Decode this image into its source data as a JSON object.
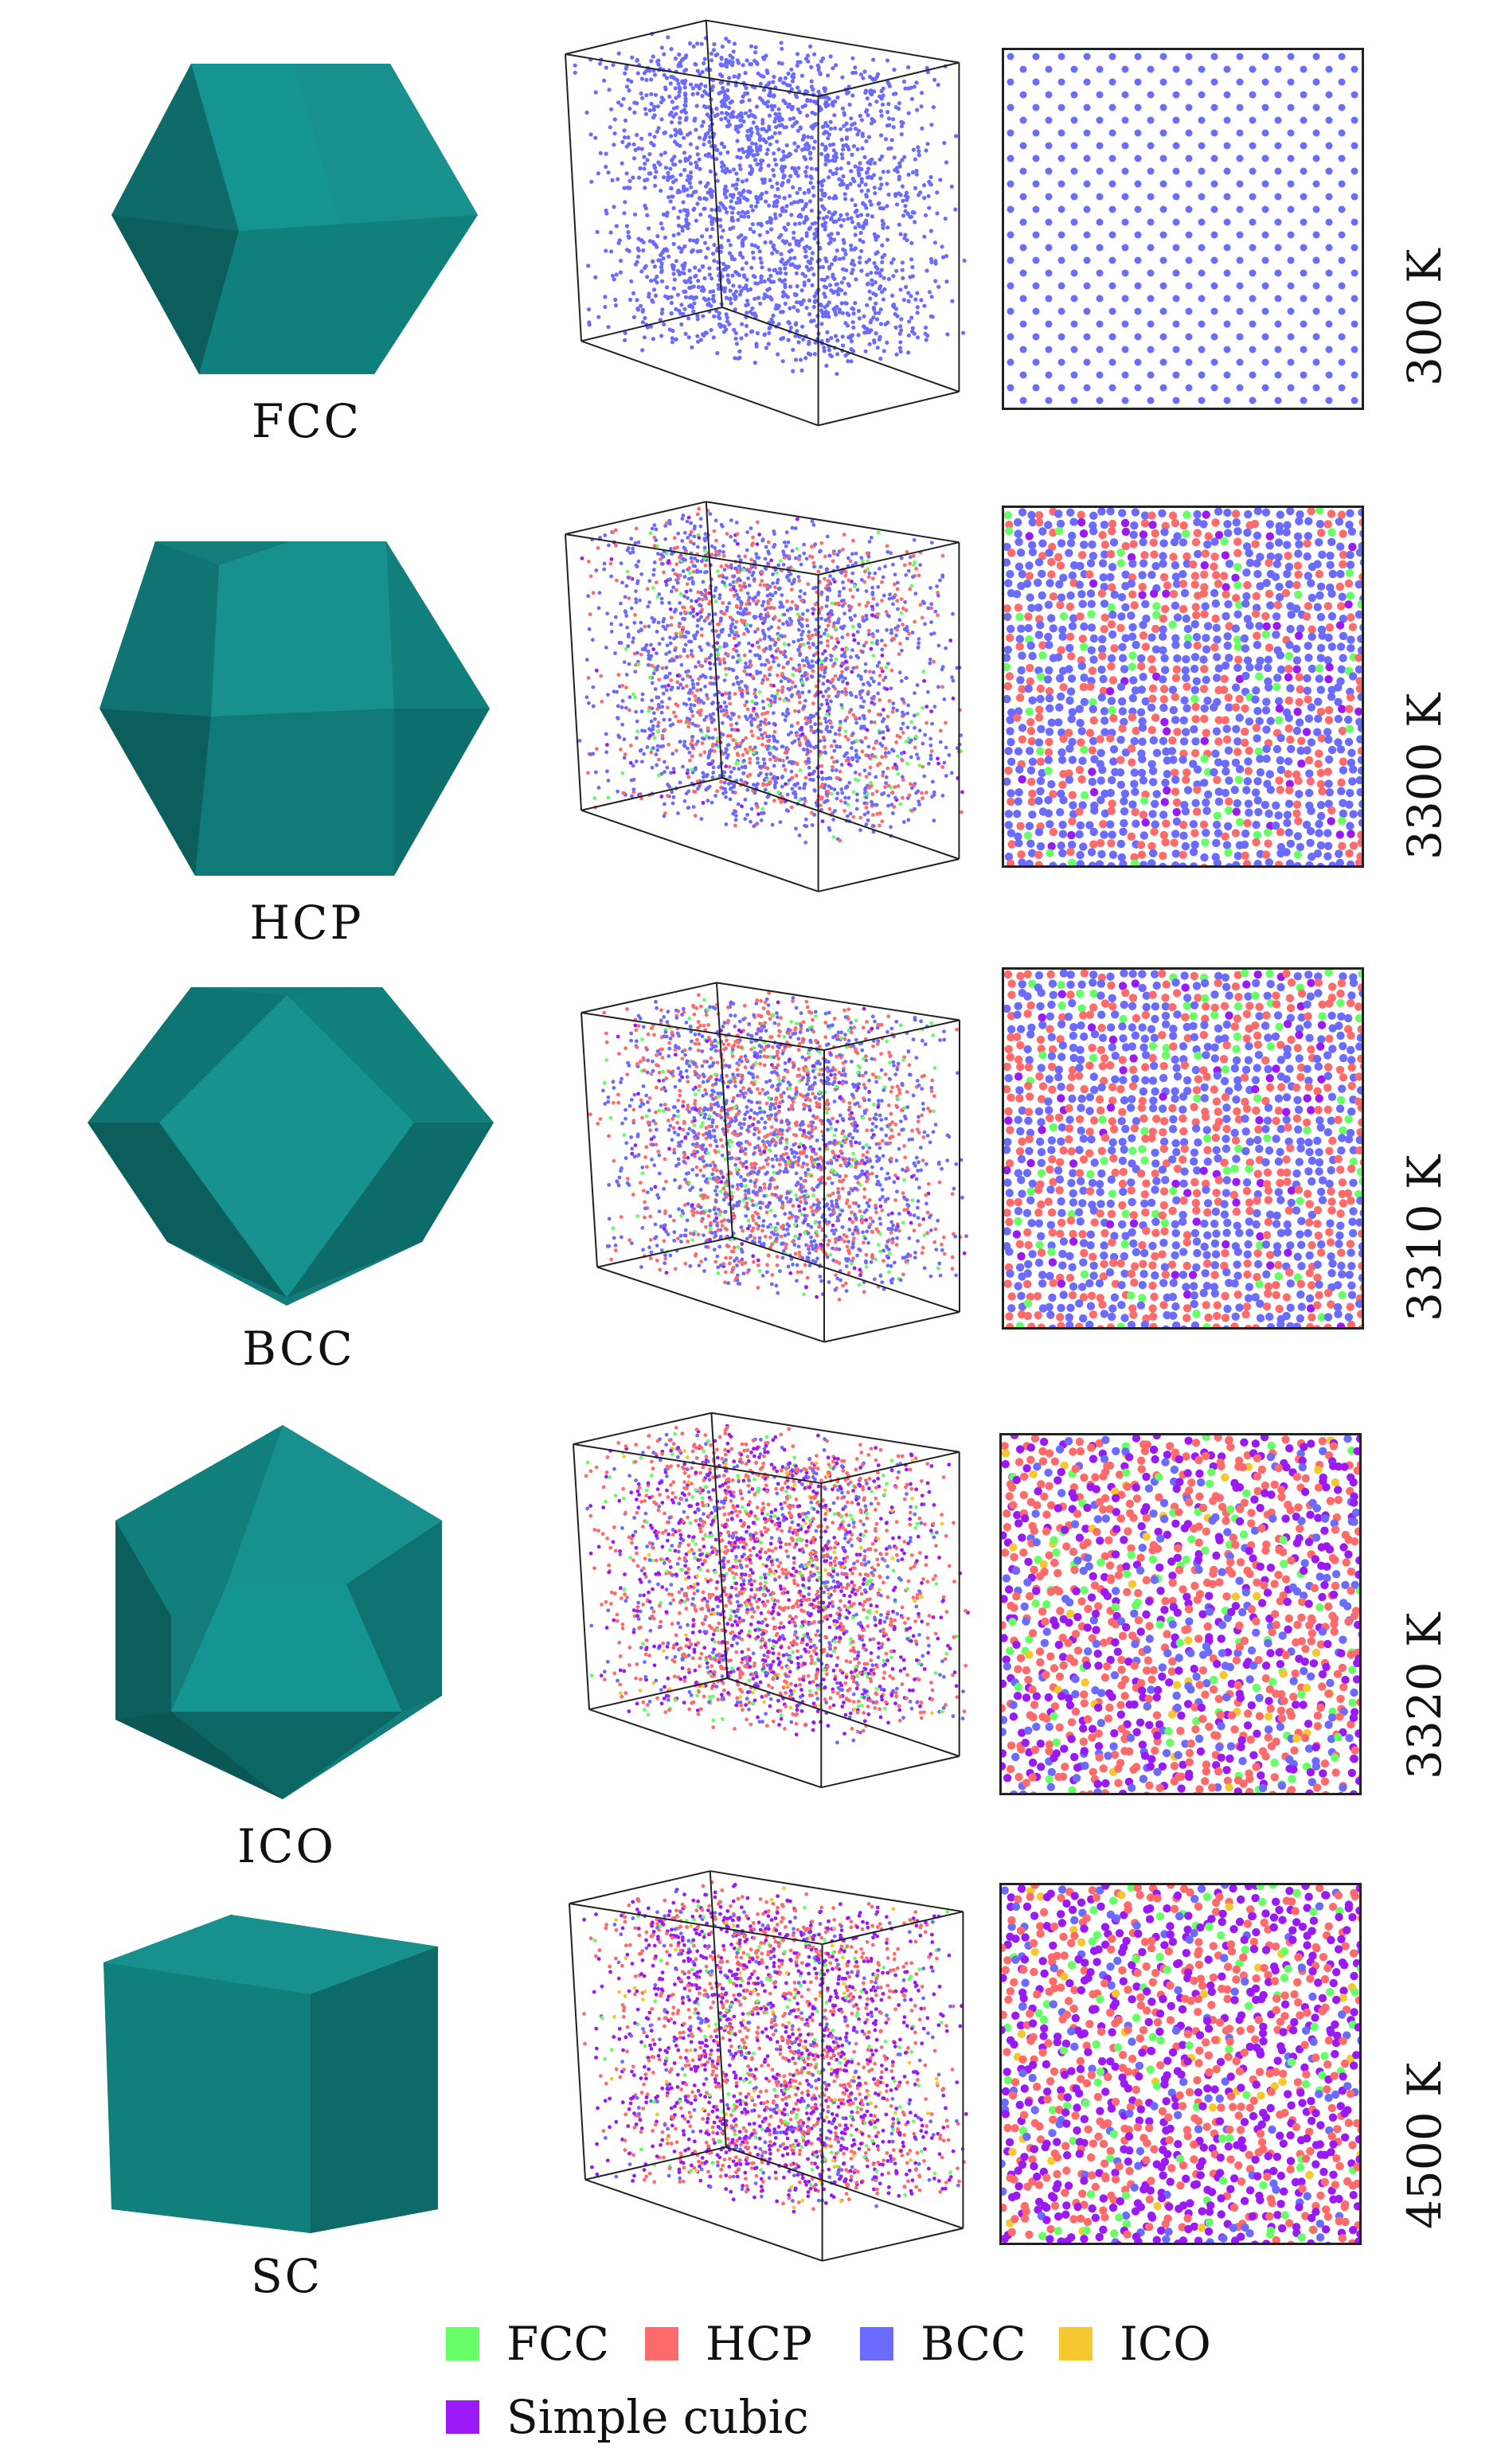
{
  "rows": [
    {
      "structure": "FCC",
      "temperature": "300 K"
    },
    {
      "structure": "HCP",
      "temperature": "3300 K"
    },
    {
      "structure": "BCC",
      "temperature": "3310 K"
    },
    {
      "structure": "ICO",
      "temperature": "3320 K"
    },
    {
      "structure": "SC",
      "temperature": "4500 K"
    }
  ],
  "legend": [
    {
      "label": "FCC",
      "color": "#66ff66"
    },
    {
      "label": "HCP",
      "color": "#ff6b6b"
    },
    {
      "label": "BCC",
      "color": "#6b6bff"
    },
    {
      "label": "ICO",
      "color": "#f5c830"
    },
    {
      "label": "Simple cubic",
      "color": "#9b19f5"
    }
  ],
  "polyhedron_color": "#127d7b",
  "atom_mix": [
    {
      "BCC": 1.0
    },
    {
      "BCC": 0.62,
      "HCP": 0.28,
      "FCC": 0.06,
      "Simple cubic": 0.04
    },
    {
      "BCC": 0.52,
      "HCP": 0.36,
      "FCC": 0.07,
      "Simple cubic": 0.05
    },
    {
      "HCP": 0.42,
      "Simple cubic": 0.3,
      "BCC": 0.18,
      "FCC": 0.07,
      "ICO": 0.03
    },
    {
      "Simple cubic": 0.44,
      "HCP": 0.36,
      "BCC": 0.1,
      "FCC": 0.07,
      "ICO": 0.03
    }
  ]
}
